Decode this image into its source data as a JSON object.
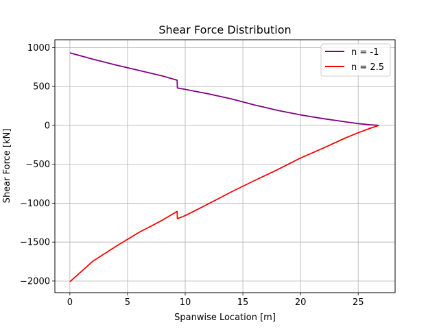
{
  "chart_data": {
    "type": "line",
    "title": "Shear Force Distribution",
    "xlabel": "Spanwise Location [m]",
    "ylabel": "Shear Force [kN]",
    "xlim": [
      -1.3,
      28.2
    ],
    "ylim": [
      -2150,
      1100
    ],
    "xticks": [
      0,
      5,
      10,
      15,
      20,
      25
    ],
    "yticks": [
      1000,
      500,
      0,
      -500,
      -1000,
      -1500,
      -2000
    ],
    "grid": true,
    "legend_position": "top-right",
    "series": [
      {
        "name": "n = -1",
        "color": "#800080",
        "points": [
          [
            0,
            932
          ],
          [
            2,
            850
          ],
          [
            4,
            775
          ],
          [
            6,
            705
          ],
          [
            8,
            635
          ],
          [
            9.3,
            580
          ],
          [
            9.32,
            480
          ],
          [
            10,
            462
          ],
          [
            12,
            405
          ],
          [
            14,
            340
          ],
          [
            16,
            262
          ],
          [
            18,
            193
          ],
          [
            20,
            135
          ],
          [
            22,
            85
          ],
          [
            24,
            43
          ],
          [
            25,
            23
          ],
          [
            26,
            8
          ],
          [
            26.8,
            0
          ]
        ]
      },
      {
        "name": "n = 2.5",
        "color": "#ff0000",
        "points": [
          [
            0,
            -2010
          ],
          [
            2,
            -1745
          ],
          [
            4,
            -1555
          ],
          [
            6,
            -1375
          ],
          [
            8,
            -1220
          ],
          [
            9.3,
            -1105
          ],
          [
            9.32,
            -1200
          ],
          [
            10,
            -1160
          ],
          [
            12,
            -1010
          ],
          [
            14,
            -855
          ],
          [
            16,
            -710
          ],
          [
            18,
            -570
          ],
          [
            20,
            -420
          ],
          [
            22,
            -290
          ],
          [
            24,
            -155
          ],
          [
            25,
            -95
          ],
          [
            26,
            -40
          ],
          [
            26.8,
            0
          ]
        ]
      }
    ]
  }
}
